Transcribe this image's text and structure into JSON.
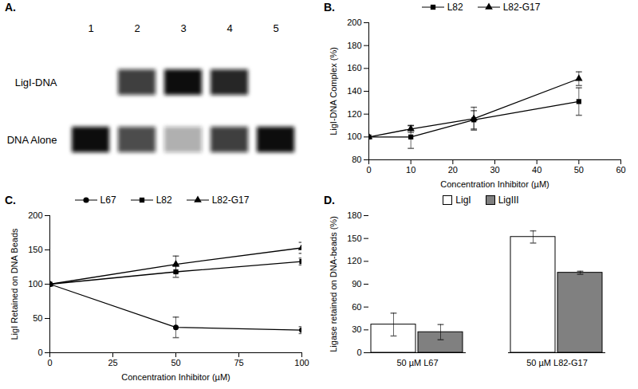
{
  "chart_data": [
    {
      "type": "gel",
      "title": "A.",
      "lanes": [
        "1",
        "2",
        "3",
        "4",
        "5"
      ],
      "series": [
        {
          "name": "LigI-DNA",
          "values": [
            0,
            0.8,
            1,
            0.9,
            0
          ]
        },
        {
          "name": "DNA Alone",
          "values": [
            1,
            0.75,
            0.35,
            0.8,
            1
          ]
        }
      ]
    },
    {
      "type": "line",
      "title": "B.",
      "x_label": "Concentration Inhibitor (µM)",
      "y_label": "LigI-DNA Complex (%)",
      "x": [
        0,
        10,
        25,
        50
      ],
      "series": [
        {
          "name": "L82",
          "color": "#000000",
          "marker": "square",
          "values": [
            100,
            100,
            115,
            131
          ],
          "errors": [
            0,
            10,
            8,
            12
          ]
        },
        {
          "name": "L82-G17",
          "color": "#000000",
          "marker": "triangle",
          "values": [
            100,
            107,
            116,
            151
          ],
          "errors": [
            0,
            3,
            10,
            6
          ]
        }
      ],
      "xlim": [
        0,
        60
      ],
      "xticks": [
        0,
        10,
        20,
        30,
        40,
        50,
        60
      ],
      "ylim": [
        80,
        200
      ],
      "yticks": [
        80,
        100,
        120,
        140,
        160,
        180,
        200
      ],
      "legend": "top"
    },
    {
      "type": "line",
      "title": "C.",
      "x_label": "Concentration Inhibitor (µM)",
      "y_label": "LigI Retained on DNA Beads",
      "x": [
        0,
        50,
        100
      ],
      "series": [
        {
          "name": "L67",
          "color": "#000000",
          "marker": "circle",
          "values": [
            100,
            37,
            33
          ],
          "errors": [
            0,
            15,
            5
          ]
        },
        {
          "name": "L82",
          "color": "#000000",
          "marker": "square",
          "values": [
            100,
            118,
            133
          ],
          "errors": [
            0,
            8,
            5
          ]
        },
        {
          "name": "L82-G17",
          "color": "#000000",
          "marker": "triangle",
          "values": [
            100,
            129,
            153
          ],
          "errors": [
            0,
            12,
            8
          ]
        }
      ],
      "xlim": [
        0,
        100
      ],
      "xticks": [
        0,
        25,
        50,
        75,
        100
      ],
      "ylim": [
        0,
        200
      ],
      "yticks": [
        0,
        50,
        100,
        150,
        200
      ],
      "legend": "top"
    },
    {
      "type": "bar",
      "title": "D.",
      "y_label": "Ligase retained on DNA-beads (%)",
      "categories": [
        "50 µM L67",
        "50 µM L82-G17"
      ],
      "series": [
        {
          "name": "LigI",
          "color": "#ffffff",
          "values": [
            37,
            152
          ],
          "errors": [
            15,
            8
          ]
        },
        {
          "name": "LigIII",
          "color": "#808080",
          "values": [
            27,
            105
          ],
          "errors": [
            10,
            2
          ]
        }
      ],
      "ylim": [
        0,
        180
      ],
      "yticks": [
        0,
        30,
        60,
        90,
        120,
        150,
        180
      ],
      "legend": "top"
    }
  ]
}
